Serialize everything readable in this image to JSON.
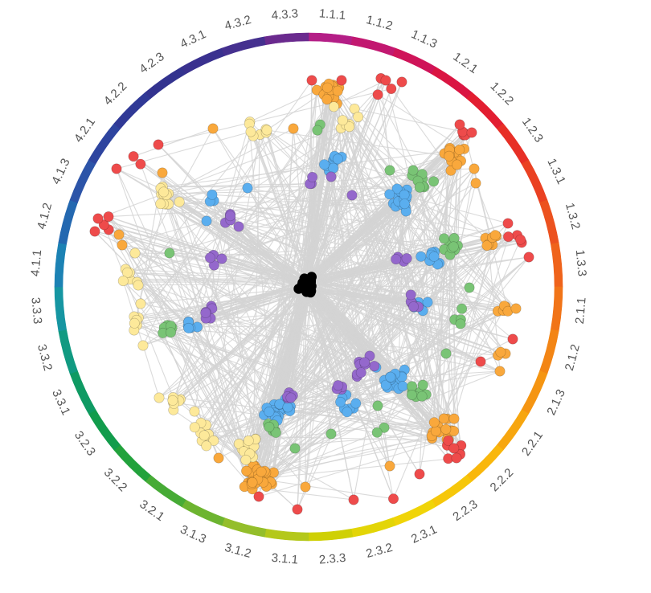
{
  "chart_data": {
    "type": "network",
    "title": "",
    "ring_segments": [
      {
        "label": "1.1.1",
        "color": "#B41E86"
      },
      {
        "label": "1.1.2",
        "color": "#C21870"
      },
      {
        "label": "1.1.3",
        "color": "#CF1459"
      },
      {
        "label": "1.2.1",
        "color": "#DA1542"
      },
      {
        "label": "1.2.2",
        "color": "#E21E31"
      },
      {
        "label": "1.2.3",
        "color": "#E72F26"
      },
      {
        "label": "1.3.1",
        "color": "#EA4122"
      },
      {
        "label": "1.3.2",
        "color": "#EC521F"
      },
      {
        "label": "1.3.3",
        "color": "#EF631B"
      },
      {
        "label": "2.1.1",
        "color": "#F17418"
      },
      {
        "label": "2.1.2",
        "color": "#F38515"
      },
      {
        "label": "2.1.3",
        "color": "#F59512"
      },
      {
        "label": "2.2.1",
        "color": "#F7A60F"
      },
      {
        "label": "2.2.2",
        "color": "#F9B70C"
      },
      {
        "label": "2.2.3",
        "color": "#F6C70A"
      },
      {
        "label": "2.3.1",
        "color": "#F0D408"
      },
      {
        "label": "2.3.2",
        "color": "#E3D507"
      },
      {
        "label": "2.3.3",
        "color": "#CFD005"
      },
      {
        "label": "3.1.1",
        "color": "#B4C81B"
      },
      {
        "label": "3.1.2",
        "color": "#94BE2B"
      },
      {
        "label": "3.1.3",
        "color": "#6DB430"
      },
      {
        "label": "3.2.1",
        "color": "#47AB36"
      },
      {
        "label": "3.2.2",
        "color": "#22A23C"
      },
      {
        "label": "3.2.3",
        "color": "#129C4C"
      },
      {
        "label": "3.3.1",
        "color": "#0F9A63"
      },
      {
        "label": "3.3.2",
        "color": "#119A81"
      },
      {
        "label": "3.3.3",
        "color": "#1696A2"
      },
      {
        "label": "4.1.1",
        "color": "#1C82B4"
      },
      {
        "label": "4.1.2",
        "color": "#2468B0"
      },
      {
        "label": "4.1.3",
        "color": "#2C54A8"
      },
      {
        "label": "4.2.1",
        "color": "#2E449F"
      },
      {
        "label": "4.2.2",
        "color": "#303996"
      },
      {
        "label": "4.2.3",
        "color": "#33338F"
      },
      {
        "label": "4.3.1",
        "color": "#3A318F"
      },
      {
        "label": "4.3.2",
        "color": "#45308F"
      },
      {
        "label": "4.3.3",
        "color": "#6A2A8E"
      }
    ],
    "node_colors": {
      "red": "#EE4B4B",
      "orange": "#F9A83C",
      "yellow": "#FDE99A",
      "green": "#79C475",
      "blue": "#5AAEEF",
      "purple": "#9468CC",
      "black": "#000000"
    },
    "edge_color": "#D3D3D3"
  }
}
